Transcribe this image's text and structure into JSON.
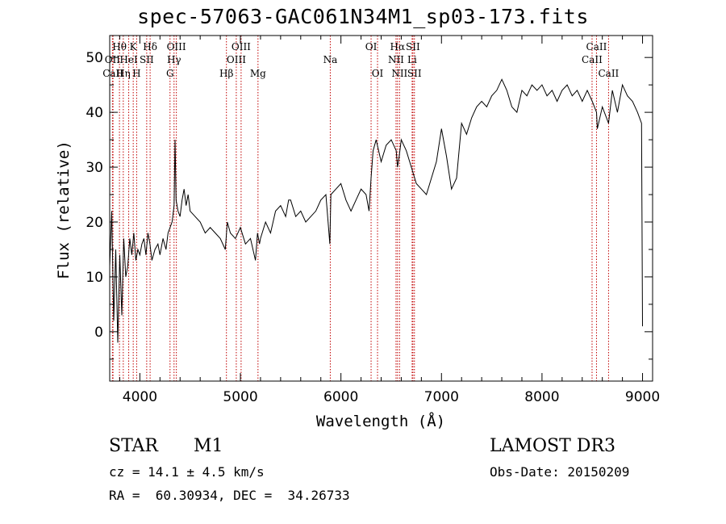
{
  "chart_data": {
    "type": "line",
    "title": "spec-57063-GAC061N34M1_sp03-173.fits",
    "xlabel": "Wavelength (Å)",
    "ylabel": "Flux (relative)",
    "xlim": [
      3700,
      9100
    ],
    "ylim": [
      -9,
      54
    ],
    "xticks": [
      4000,
      5000,
      6000,
      7000,
      8000,
      9000
    ],
    "yticks": [
      0,
      10,
      20,
      30,
      40,
      50
    ],
    "series": [
      {
        "name": "flux",
        "x": [
          3700,
          3720,
          3740,
          3760,
          3780,
          3800,
          3820,
          3840,
          3860,
          3880,
          3900,
          3920,
          3940,
          3960,
          3980,
          4000,
          4020,
          4040,
          4060,
          4080,
          4100,
          4120,
          4150,
          4180,
          4200,
          4230,
          4260,
          4280,
          4300,
          4320,
          4340,
          4350,
          4360,
          4380,
          4400,
          4420,
          4440,
          4460,
          4480,
          4500,
          4550,
          4600,
          4650,
          4700,
          4750,
          4800,
          4850,
          4870,
          4900,
          4950,
          5000,
          5050,
          5100,
          5150,
          5170,
          5190,
          5200,
          5250,
          5300,
          5350,
          5400,
          5450,
          5480,
          5500,
          5550,
          5600,
          5650,
          5700,
          5750,
          5800,
          5850,
          5890,
          5900,
          5950,
          6000,
          6050,
          6100,
          6150,
          6200,
          6250,
          6280,
          6300,
          6320,
          6350,
          6400,
          6450,
          6500,
          6550,
          6563,
          6580,
          6600,
          6650,
          6700,
          6750,
          6800,
          6850,
          6900,
          6950,
          7000,
          7050,
          7100,
          7150,
          7200,
          7250,
          7300,
          7350,
          7400,
          7450,
          7500,
          7550,
          7600,
          7650,
          7700,
          7750,
          7800,
          7850,
          7900,
          7950,
          8000,
          8050,
          8100,
          8150,
          8200,
          8250,
          8300,
          8350,
          8400,
          8450,
          8500,
          8542,
          8550,
          8600,
          8662,
          8700,
          8750,
          8800,
          8850,
          8900,
          8950,
          8990,
          9000
        ],
        "y": [
          12,
          22,
          2,
          15,
          -2,
          14,
          3,
          17,
          10,
          12,
          17,
          14,
          18,
          13,
          15,
          14,
          16,
          17,
          14,
          18,
          16,
          13,
          15,
          16,
          14,
          17,
          15,
          18,
          19,
          20,
          23,
          35,
          24,
          22,
          21,
          24,
          26,
          23,
          25,
          22,
          21,
          20,
          18,
          19,
          18,
          17,
          15,
          20,
          18,
          17,
          19,
          16,
          17,
          13,
          18,
          16,
          17,
          20,
          18,
          22,
          23,
          21,
          24,
          24,
          21,
          22,
          20,
          21,
          22,
          24,
          25,
          16,
          25,
          26,
          27,
          24,
          22,
          24,
          26,
          25,
          22,
          28,
          33,
          35,
          31,
          34,
          35,
          33,
          30,
          32,
          35,
          33,
          30,
          27,
          26,
          25,
          28,
          31,
          37,
          32,
          26,
          28,
          38,
          36,
          39,
          41,
          42,
          41,
          43,
          44,
          46,
          44,
          41,
          40,
          44,
          43,
          45,
          44,
          45,
          43,
          44,
          42,
          44,
          45,
          43,
          44,
          42,
          44,
          42,
          40,
          37,
          41,
          38,
          44,
          40,
          45,
          43,
          42,
          40,
          38,
          1
        ]
      }
    ],
    "line_markers": [
      {
        "name": "Hθ",
        "wl": 3797,
        "row": 1
      },
      {
        "name": "OII",
        "wl": 3727,
        "row": 2
      },
      {
        "name": "CaII",
        "wl": 3733,
        "row": 3
      },
      {
        "name": "Hη",
        "wl": 3835,
        "row": 3
      },
      {
        "name": "K",
        "wl": 3934,
        "row": 1
      },
      {
        "name": "HeI",
        "wl": 3889,
        "row": 2
      },
      {
        "name": "H",
        "wl": 3968,
        "row": 3
      },
      {
        "name": "SII",
        "wl": 4068,
        "row": 2
      },
      {
        "name": "Hδ",
        "wl": 4102,
        "row": 1
      },
      {
        "name": "G",
        "wl": 4300,
        "row": 3
      },
      {
        "name": "Hγ",
        "wl": 4340,
        "row": 2
      },
      {
        "name": "OIII",
        "wl": 4363,
        "row": 1
      },
      {
        "name": "Hβ",
        "wl": 4861,
        "row": 3
      },
      {
        "name": "OIII",
        "wl": 4959,
        "row": 2
      },
      {
        "name": "OIII",
        "wl": 5007,
        "row": 1
      },
      {
        "name": "Mg",
        "wl": 5175,
        "row": 3
      },
      {
        "name": "Na",
        "wl": 5894,
        "row": 2
      },
      {
        "name": "OI",
        "wl": 6300,
        "row": 1
      },
      {
        "name": "OI",
        "wl": 6364,
        "row": 3
      },
      {
        "name": "NII",
        "wl": 6548,
        "row": 2
      },
      {
        "name": "Hα",
        "wl": 6563,
        "row": 1
      },
      {
        "name": "NII",
        "wl": 6583,
        "row": 3
      },
      {
        "name": "Li",
        "wl": 6708,
        "row": 2
      },
      {
        "name": "SII",
        "wl": 6716,
        "row": 1
      },
      {
        "name": "SII",
        "wl": 6731,
        "row": 3
      },
      {
        "name": "CaII",
        "wl": 8498,
        "row": 2
      },
      {
        "name": "CaII",
        "wl": 8542,
        "row": 1
      },
      {
        "name": "CaII",
        "wl": 8662,
        "row": 3
      }
    ]
  },
  "info": {
    "class_label": "STAR",
    "subclass_label": "M1",
    "survey": "LAMOST DR3",
    "cz": "cz = 14.1 ± 4.5 km/s",
    "obs_date": "Obs-Date: 20150209",
    "coords": "RA =  60.30934, DEC =  34.26733"
  }
}
